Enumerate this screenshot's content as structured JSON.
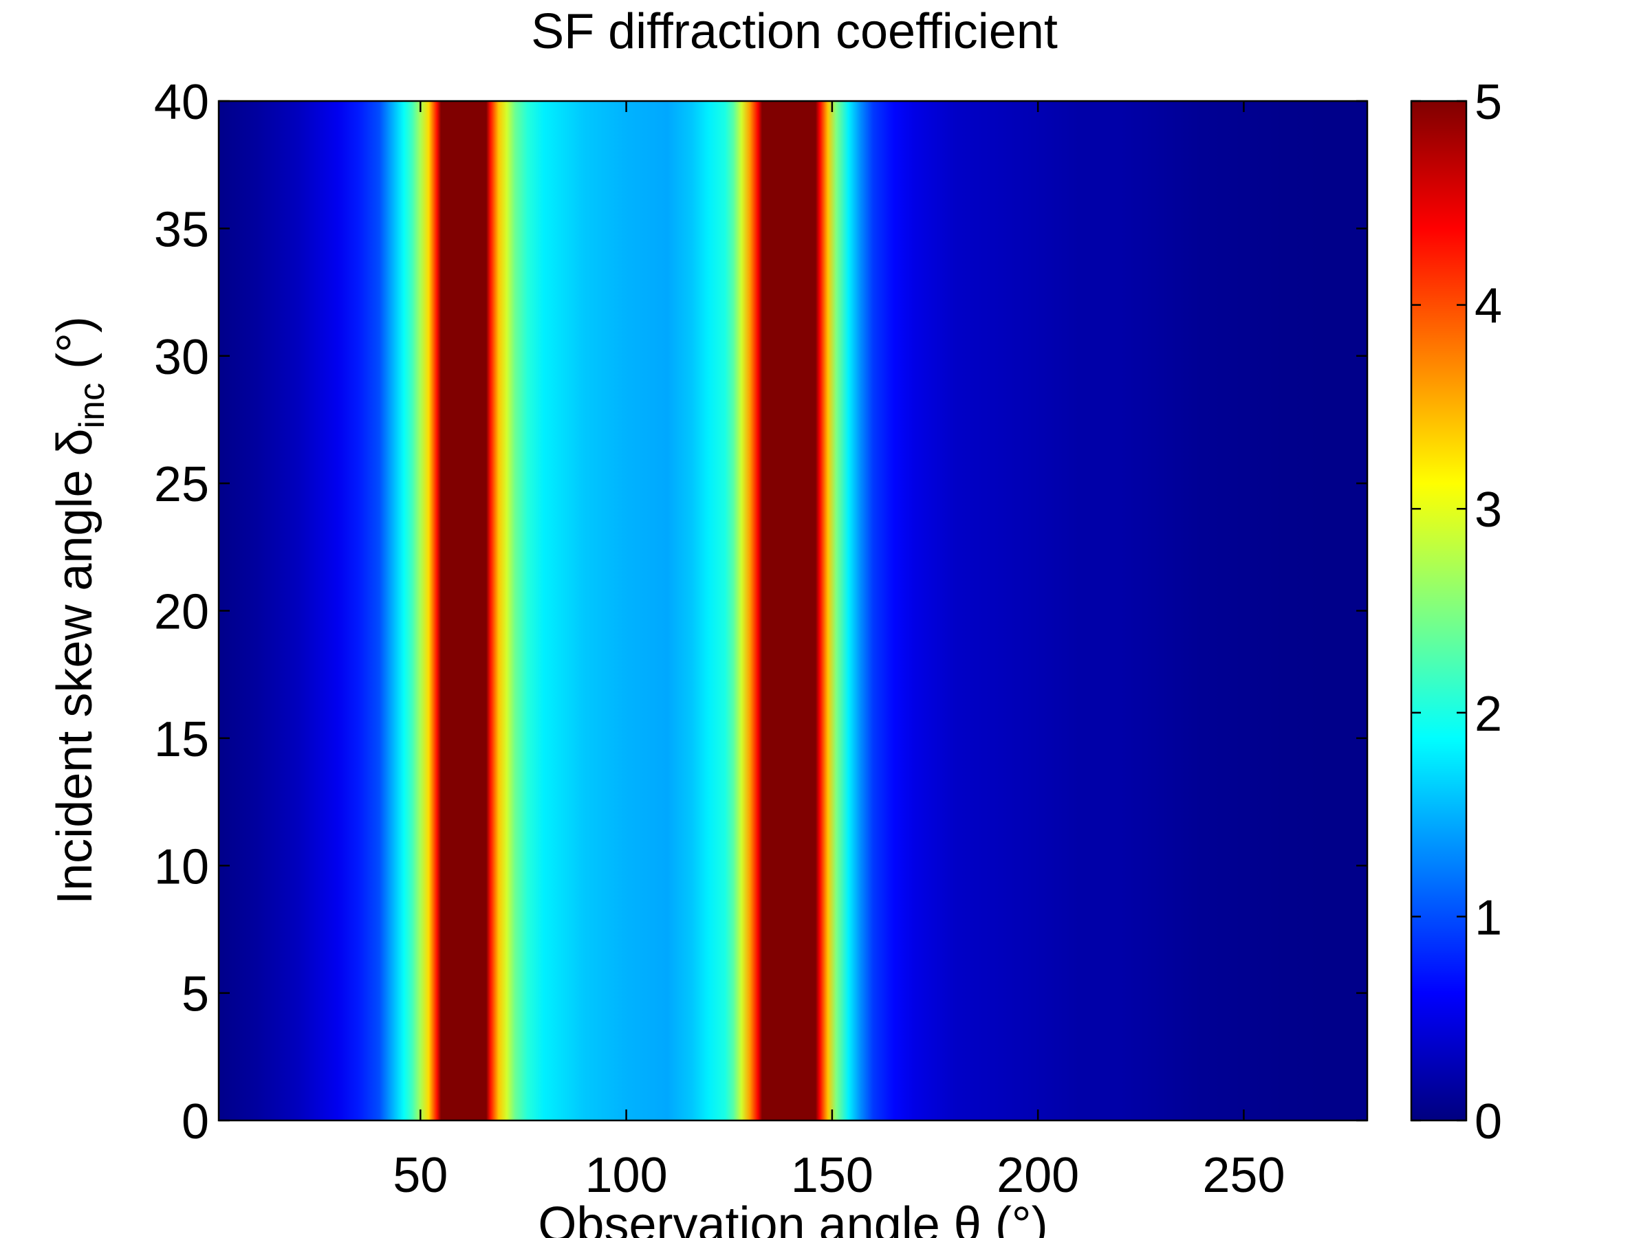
{
  "chart_data": {
    "type": "heatmap",
    "title": "SF diffraction coefficient",
    "xlabel": "Observation angle θ (°)",
    "ylabel": "Incident skew angle δ",
    "ylabel_subscript": "inc",
    "ylabel_suffix": " (°)",
    "xlim": [
      1,
      280
    ],
    "ylim": [
      0,
      40
    ],
    "clim": [
      0,
      5
    ],
    "colormap": "jet",
    "grid": false,
    "xticks": [
      50,
      100,
      150,
      200,
      250
    ],
    "yticks": [
      0,
      5,
      10,
      15,
      20,
      25,
      30,
      35,
      40
    ],
    "colorbar_ticks": [
      0,
      1,
      2,
      3,
      4,
      5
    ],
    "profile_note": "values constant along skew angle; coefficient vs observation angle",
    "profile": {
      "theta": [
        1,
        10,
        20,
        30,
        35,
        40,
        44,
        46,
        48,
        50,
        52,
        54,
        55,
        60,
        66,
        67,
        69,
        71,
        73,
        76,
        80,
        90,
        100,
        110,
        116,
        120,
        124,
        126,
        128,
        130,
        132,
        133,
        140,
        146,
        147,
        149,
        151,
        154,
        157,
        160,
        165,
        170,
        180,
        190,
        200,
        210,
        220,
        230,
        240,
        250,
        260,
        270,
        280
      ],
      "value": [
        0.05,
        0.15,
        0.3,
        0.55,
        0.75,
        1.0,
        1.6,
        1.9,
        2.2,
        2.7,
        3.3,
        4.3,
        5.0,
        5.0,
        5.0,
        4.3,
        3.4,
        2.9,
        2.4,
        2.05,
        1.8,
        1.6,
        1.5,
        1.45,
        1.6,
        1.8,
        2.0,
        2.3,
        2.9,
        3.6,
        4.4,
        5.0,
        5.0,
        5.0,
        4.4,
        3.4,
        2.5,
        1.8,
        1.3,
        0.9,
        0.65,
        0.5,
        0.35,
        0.3,
        0.25,
        0.2,
        0.2,
        0.15,
        0.1,
        0.08,
        0.06,
        0.05,
        0.05
      ]
    }
  }
}
